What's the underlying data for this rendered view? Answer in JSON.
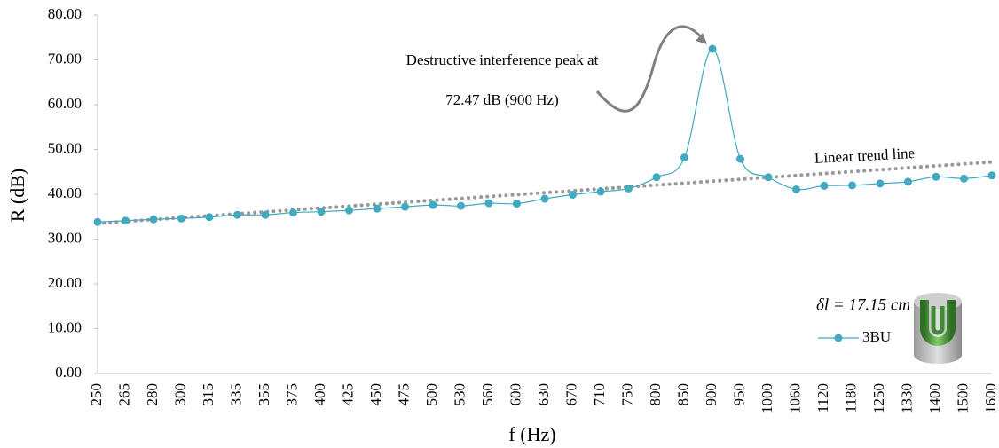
{
  "chart_data": {
    "type": "line",
    "xlabel": "f (Hz)",
    "ylabel": "R (dB)",
    "categories": [
      "250",
      "265",
      "280",
      "300",
      "315",
      "335",
      "355",
      "375",
      "400",
      "425",
      "450",
      "475",
      "500",
      "530",
      "560",
      "600",
      "630",
      "670",
      "710",
      "750",
      "800",
      "850",
      "900",
      "950",
      "1000",
      "1060",
      "1120",
      "1180",
      "1250",
      "1330",
      "1400",
      "1500",
      "1600"
    ],
    "series": [
      {
        "name": "3BU",
        "color": "#41a9c0",
        "values": [
          33.8,
          34.1,
          34.4,
          34.6,
          34.9,
          35.4,
          35.4,
          35.9,
          36.1,
          36.4,
          36.8,
          37.2,
          37.6,
          37.4,
          38.0,
          37.9,
          39.0,
          39.9,
          40.6,
          41.3,
          43.8,
          48.2,
          72.47,
          47.9,
          43.8,
          41.1,
          41.9,
          42.0,
          42.4,
          42.8,
          43.9,
          43.5,
          44.2
        ]
      }
    ],
    "trendline": {
      "label": "Linear trend line",
      "color": "#999999",
      "start": 33.5,
      "end": 47.2
    },
    "ylim": [
      0,
      80
    ],
    "yticks": [
      {
        "value": 0,
        "label": "0.00"
      },
      {
        "value": 10,
        "label": "10.00"
      },
      {
        "value": 20,
        "label": "20.00"
      },
      {
        "value": 30,
        "label": "30.00"
      },
      {
        "value": 40,
        "label": "40.00"
      },
      {
        "value": 50,
        "label": "50.00"
      },
      {
        "value": 60,
        "label": "60.00"
      },
      {
        "value": 70,
        "label": "70.00"
      },
      {
        "value": 80,
        "label": "80.00"
      }
    ],
    "annotations": [
      "Destructive interference peak at",
      "72.47 dB (900 Hz)",
      "δl = 17.15 cm"
    ],
    "grid": false
  }
}
